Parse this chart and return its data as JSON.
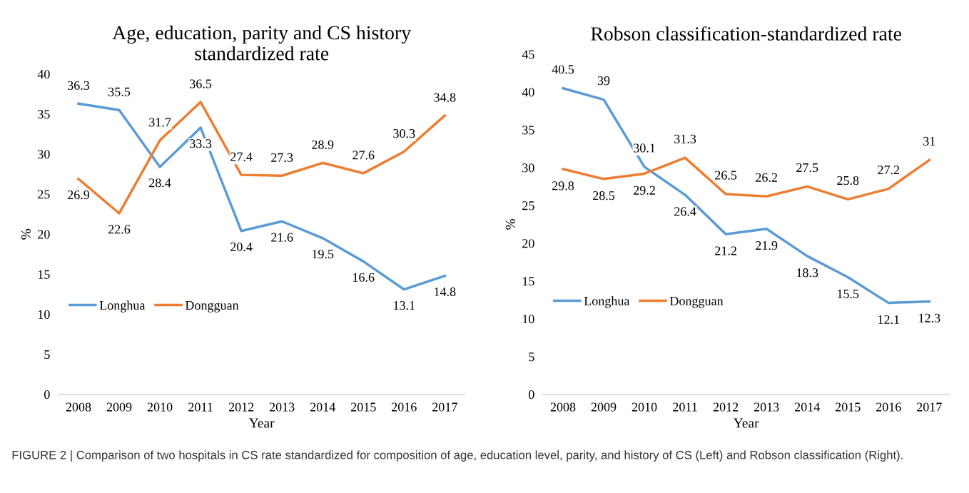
{
  "chart_data": [
    {
      "type": "line",
      "title": "Age, education, parity and CS history\nstandardized rate",
      "xlabel": "Year",
      "ylabel": "%",
      "categories": [
        "2008",
        "2009",
        "2010",
        "2011",
        "2012",
        "2013",
        "2014",
        "2015",
        "2016",
        "2017"
      ],
      "series": [
        {
          "name": "Longhua",
          "color": "#5b9bd5",
          "values": [
            36.3,
            35.5,
            28.4,
            33.3,
            20.4,
            21.6,
            19.5,
            16.6,
            13.1,
            14.8
          ]
        },
        {
          "name": "Dongguan",
          "color": "#ed7d31",
          "values": [
            26.9,
            22.6,
            31.7,
            36.5,
            27.4,
            27.3,
            28.9,
            27.6,
            30.3,
            34.8
          ]
        }
      ],
      "ylim": [
        0,
        40
      ],
      "yticks": [
        0,
        5,
        10,
        15,
        20,
        25,
        30,
        35,
        40
      ],
      "data_labels": true,
      "legend": "lower left",
      "grid": false,
      "marker": "none",
      "line_style": "solid"
    },
    {
      "type": "line",
      "title": "Robson classification-standardized rate",
      "xlabel": "Year",
      "ylabel": "%",
      "categories": [
        "2008",
        "2009",
        "2010",
        "2011",
        "2012",
        "2013",
        "2014",
        "2015",
        "2016",
        "2017"
      ],
      "series": [
        {
          "name": "Longhua",
          "color": "#5b9bd5",
          "values": [
            40.5,
            39,
            30.1,
            26.4,
            21.2,
            21.9,
            18.3,
            15.5,
            12.1,
            12.3
          ]
        },
        {
          "name": "Dongguan",
          "color": "#ed7d31",
          "values": [
            29.8,
            28.5,
            29.2,
            31.3,
            26.5,
            26.2,
            27.5,
            25.8,
            27.2,
            31
          ]
        }
      ],
      "ylim": [
        0,
        45
      ],
      "yticks": [
        0,
        5,
        10,
        15,
        20,
        25,
        30,
        35,
        40,
        45
      ],
      "data_labels": true,
      "legend": "lower left",
      "grid": false,
      "marker": "none",
      "line_style": "solid",
      "annotations": [
        "FIGURE 2 | Comparison of two hospitals in CS rate standardized for composition of age, education level, parity, and history of CS (Left) and Robson classification (Right)."
      ]
    }
  ]
}
